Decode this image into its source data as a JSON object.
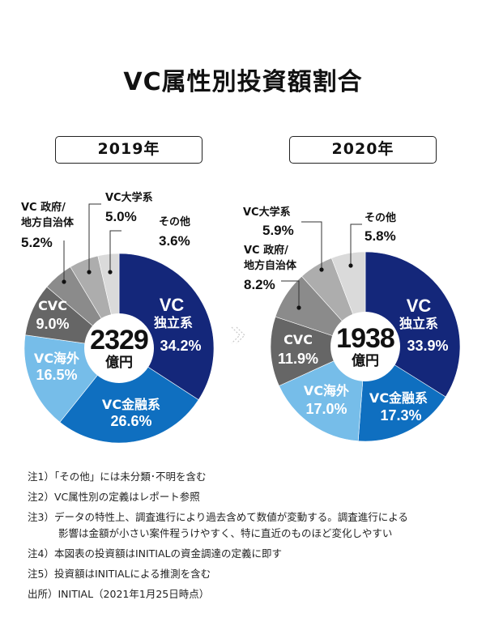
{
  "title": "VC属性別投資額割合",
  "colors": {
    "VC独立系": "#14277a",
    "VC金融系": "#0f6fc0",
    "VC海外": "#76bde9",
    "CVC": "#666666",
    "VC政府/地方自治体": "#8b8b8b",
    "VC大学系": "#adadad",
    "その他": "#dadada"
  },
  "arrow_icon": "chevron-right-icon",
  "chart_data": [
    {
      "type": "pie",
      "title": "2019年",
      "total": "2329",
      "total_unit": "億円",
      "categories": [
        "VC独立系",
        "VC金融系",
        "VC海外",
        "CVC",
        "VC政府/地方自治体",
        "VC大学系",
        "その他"
      ],
      "values": [
        34.2,
        26.6,
        16.5,
        9.0,
        5.2,
        5.0,
        3.6
      ],
      "labels": {
        "indep": [
          "VC",
          "独立系",
          "34.2%"
        ],
        "fin": [
          "VC金融系",
          "26.6%"
        ],
        "overseas": [
          "VC海外",
          "16.5%"
        ],
        "cvc": [
          "CVC",
          "9.0%"
        ],
        "gov": [
          "VC 政府/",
          "地方自治体",
          "5.2%"
        ],
        "univ": [
          "VC大学系",
          "5.0%"
        ],
        "other": [
          "その他",
          "3.6%"
        ]
      }
    },
    {
      "type": "pie",
      "title": "2020年",
      "total": "1938",
      "total_unit": "億円",
      "categories": [
        "VC独立系",
        "VC金融系",
        "VC海外",
        "CVC",
        "VC政府/地方自治体",
        "VC大学系",
        "その他"
      ],
      "values": [
        33.9,
        17.3,
        17.0,
        11.9,
        8.2,
        5.9,
        5.8
      ],
      "labels": {
        "indep": [
          "VC",
          "独立系",
          "33.9%"
        ],
        "fin": [
          "VC金融系",
          "17.3%"
        ],
        "overseas": [
          "VC海外",
          "17.0%"
        ],
        "cvc": [
          "CVC",
          "11.9%"
        ],
        "gov": [
          "VC 政府/",
          "地方自治体",
          "8.2%"
        ],
        "univ": [
          "VC大学系",
          "5.9%"
        ],
        "other": [
          "その他",
          "5.8%"
        ]
      }
    }
  ],
  "notes": [
    "注1）「その他」には未分類･不明を含む",
    "注2）VC属性別の定義はレポート参照",
    "注3）データの特性上、調査進行により過去含めて数値が変動する。調査進行による",
    "影響は金額が小さい案件程うけやすく、特に直近のものほど変化しやすい",
    "注4）本図表の投資額はINITIALの資金調達の定義に即す",
    "注5）投資額はINITIALによる推測を含む",
    "出所）INITIAL（2021年1月25日時点）"
  ]
}
